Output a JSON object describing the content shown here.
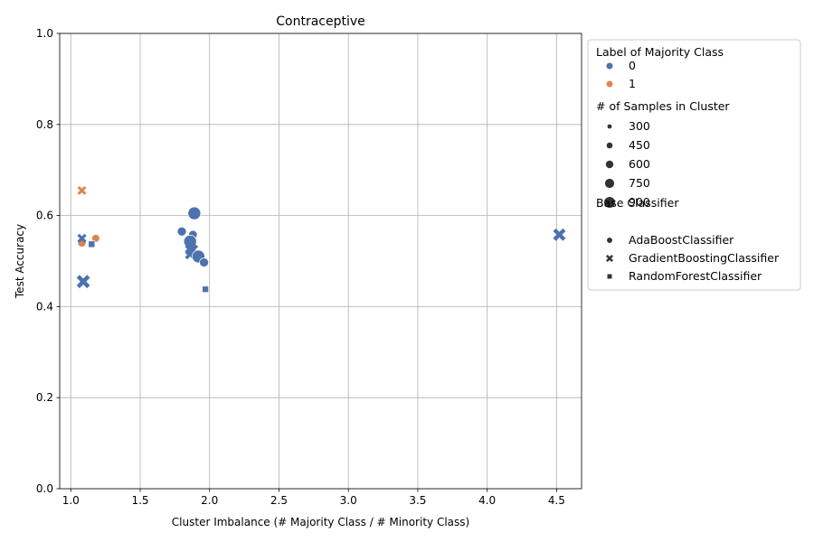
{
  "chart_data": {
    "type": "scatter",
    "title": "Contraceptive",
    "xlabel": "Cluster Imbalance (# Majority Class / # Minority Class)",
    "ylabel": "Test Accuracy",
    "xlim": [
      0.92,
      4.68
    ],
    "ylim": [
      0.0,
      1.0
    ],
    "xticks": [
      "1.0",
      "1.5",
      "2.0",
      "2.5",
      "3.0",
      "3.5",
      "4.0",
      "4.5"
    ],
    "xtick_values": [
      1.0,
      1.5,
      2.0,
      2.5,
      3.0,
      3.5,
      4.0,
      4.5
    ],
    "yticks": [
      "0.0",
      "0.2",
      "0.4",
      "0.6",
      "0.8",
      "1.0"
    ],
    "ytick_values": [
      0.0,
      0.2,
      0.4,
      0.6,
      0.8,
      1.0
    ],
    "grid": true,
    "legend_placement": "outside-right",
    "colors": {
      "0": "#4c72b0",
      "1": "#dd8452"
    },
    "legend": {
      "hue_title": "Label of Majority Class",
      "hue_entries": [
        {
          "label": "0",
          "color": "#4c72b0"
        },
        {
          "label": "1",
          "color": "#dd8452"
        }
      ],
      "size_title": "# of Samples in Cluster",
      "size_entries": [
        {
          "label": "300",
          "size": 300
        },
        {
          "label": "450",
          "size": 450
        },
        {
          "label": "600",
          "size": 600
        },
        {
          "label": "750",
          "size": 750
        },
        {
          "label": "900",
          "size": 900
        }
      ],
      "style_title": "Base Classifier",
      "style_entries": [
        {
          "label": "AdaBoostClassifier",
          "marker": "circle"
        },
        {
          "label": "GradientBoostingClassifier",
          "marker": "x"
        },
        {
          "label": "RandomForestClassifier",
          "marker": "square"
        }
      ]
    },
    "points": [
      {
        "x": 1.08,
        "y": 0.655,
        "label": 1,
        "size": 200,
        "classifier": "GradientBoostingClassifier"
      },
      {
        "x": 1.08,
        "y": 0.54,
        "label": 1,
        "size": 300,
        "classifier": "AdaBoostClassifier"
      },
      {
        "x": 1.18,
        "y": 0.55,
        "label": 1,
        "size": 250,
        "classifier": "AdaBoostClassifier"
      },
      {
        "x": 1.08,
        "y": 0.55,
        "label": 0,
        "size": 220,
        "classifier": "GradientBoostingClassifier"
      },
      {
        "x": 1.15,
        "y": 0.537,
        "label": 0,
        "size": 220,
        "classifier": "RandomForestClassifier"
      },
      {
        "x": 1.09,
        "y": 0.455,
        "label": 0,
        "size": 650,
        "classifier": "GradientBoostingClassifier"
      },
      {
        "x": 1.8,
        "y": 0.565,
        "label": 0,
        "size": 380,
        "classifier": "AdaBoostClassifier"
      },
      {
        "x": 1.88,
        "y": 0.558,
        "label": 0,
        "size": 330,
        "classifier": "AdaBoostClassifier"
      },
      {
        "x": 1.89,
        "y": 0.605,
        "label": 0,
        "size": 950,
        "classifier": "AdaBoostClassifier"
      },
      {
        "x": 1.86,
        "y": 0.543,
        "label": 0,
        "size": 950,
        "classifier": "AdaBoostClassifier"
      },
      {
        "x": 1.86,
        "y": 0.525,
        "label": 0,
        "size": 330,
        "classifier": "GradientBoostingClassifier"
      },
      {
        "x": 1.88,
        "y": 0.525,
        "label": 0,
        "size": 330,
        "classifier": "GradientBoostingClassifier"
      },
      {
        "x": 1.86,
        "y": 0.515,
        "label": 0,
        "size": 330,
        "classifier": "GradientBoostingClassifier"
      },
      {
        "x": 1.92,
        "y": 0.51,
        "label": 0,
        "size": 950,
        "classifier": "AdaBoostClassifier"
      },
      {
        "x": 1.96,
        "y": 0.497,
        "label": 0,
        "size": 380,
        "classifier": "AdaBoostClassifier"
      },
      {
        "x": 1.97,
        "y": 0.438,
        "label": 0,
        "size": 200,
        "classifier": "RandomForestClassifier"
      },
      {
        "x": 4.52,
        "y": 0.558,
        "label": 0,
        "size": 550,
        "classifier": "GradientBoostingClassifier"
      }
    ]
  }
}
